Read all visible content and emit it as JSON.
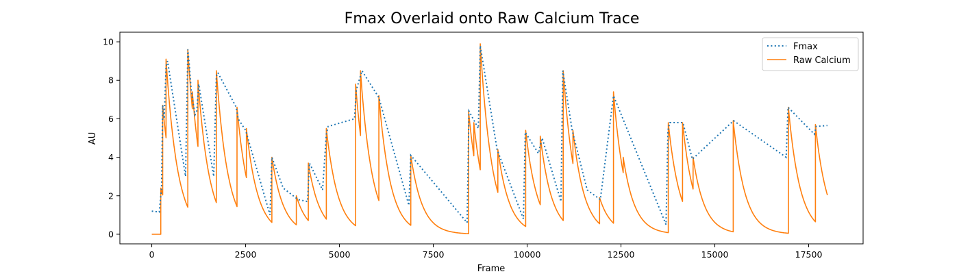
{
  "chart_data": {
    "type": "line",
    "title": "Fmax Overlaid onto Raw Calcium Trace",
    "xlabel": "Frame",
    "ylabel": "AU",
    "xlim": [
      -850,
      18950
    ],
    "ylim": [
      -0.5,
      10.5
    ],
    "x_ticks": [
      0,
      2500,
      5000,
      7500,
      10000,
      12500,
      15000,
      17500
    ],
    "y_ticks": [
      0,
      2,
      4,
      6,
      8,
      10
    ],
    "grid": false,
    "legend_position": "top-right",
    "series": [
      {
        "name": "Fmax",
        "color": "#1f77b4",
        "style": "dotted",
        "points": [
          [
            0,
            1.2
          ],
          [
            200,
            1.15
          ],
          [
            260,
            2.4
          ],
          [
            290,
            6.7
          ],
          [
            330,
            6.0
          ],
          [
            380,
            8.7
          ],
          [
            420,
            9.0
          ],
          [
            900,
            3.0
          ],
          [
            960,
            9.6
          ],
          [
            1000,
            8.8
          ],
          [
            1050,
            7.5
          ],
          [
            1150,
            6.2
          ],
          [
            1200,
            6.4
          ],
          [
            1250,
            7.8
          ],
          [
            1650,
            3.0
          ],
          [
            1720,
            8.2
          ],
          [
            1760,
            8.4
          ],
          [
            2250,
            6.6
          ],
          [
            2300,
            6.0
          ],
          [
            2500,
            5.4
          ],
          [
            3150,
            1.0
          ],
          [
            3200,
            4.0
          ],
          [
            3500,
            2.4
          ],
          [
            3900,
            1.8
          ],
          [
            4150,
            1.7
          ],
          [
            4200,
            3.7
          ],
          [
            4550,
            2.3
          ],
          [
            4650,
            5.2
          ],
          [
            4700,
            5.6
          ],
          [
            5400,
            6.0
          ],
          [
            5450,
            7.5
          ],
          [
            5600,
            8.5
          ],
          [
            6050,
            7.1
          ],
          [
            6850,
            1.5
          ],
          [
            6900,
            4.1
          ],
          [
            8400,
            0.6
          ],
          [
            8450,
            6.4
          ],
          [
            8700,
            5.5
          ],
          [
            8750,
            9.8
          ],
          [
            9200,
            4.4
          ],
          [
            9900,
            0.8
          ],
          [
            9950,
            5.3
          ],
          [
            10300,
            4.2
          ],
          [
            10400,
            5.0
          ],
          [
            10900,
            1.7
          ],
          [
            10950,
            8.5
          ],
          [
            11200,
            5.4
          ],
          [
            11600,
            2.3
          ],
          [
            11950,
            1.8
          ],
          [
            12300,
            7.2
          ],
          [
            13700,
            0.5
          ],
          [
            13750,
            5.4
          ],
          [
            13800,
            5.8
          ],
          [
            14150,
            5.8
          ],
          [
            14400,
            3.9
          ],
          [
            15500,
            5.9
          ],
          [
            16900,
            4.0
          ],
          [
            16950,
            6.6
          ],
          [
            17650,
            5.2
          ],
          [
            17700,
            5.6
          ],
          [
            18000,
            5.65
          ]
        ]
      },
      {
        "name": "Raw Calcium",
        "color": "#ff7f0e",
        "style": "solid"
      }
    ],
    "raw_events": [
      {
        "frame": 0,
        "level": 0.0
      },
      {
        "frame": 200,
        "level": 0.0
      },
      {
        "frame": 240,
        "level": 2.4
      },
      {
        "frame": 290,
        "level": 6.7
      },
      {
        "frame": 380,
        "level": 9.1
      },
      {
        "frame": 960,
        "level": 9.6
      },
      {
        "frame": 1080,
        "level": 7.4
      },
      {
        "frame": 1230,
        "level": 8.0
      },
      {
        "frame": 1720,
        "level": 8.5
      },
      {
        "frame": 2270,
        "level": 6.6
      },
      {
        "frame": 2520,
        "level": 5.5
      },
      {
        "frame": 3200,
        "level": 4.0
      },
      {
        "frame": 3850,
        "level": 2.0
      },
      {
        "frame": 4170,
        "level": 3.7
      },
      {
        "frame": 4650,
        "level": 5.5
      },
      {
        "frame": 5430,
        "level": 7.8
      },
      {
        "frame": 5560,
        "level": 8.5
      },
      {
        "frame": 6050,
        "level": 7.2
      },
      {
        "frame": 6900,
        "level": 4.1
      },
      {
        "frame": 8440,
        "level": 6.4
      },
      {
        "frame": 8580,
        "level": 5.8
      },
      {
        "frame": 8750,
        "level": 9.9
      },
      {
        "frame": 9220,
        "level": 4.4
      },
      {
        "frame": 9960,
        "level": 5.4
      },
      {
        "frame": 10350,
        "level": 5.1
      },
      {
        "frame": 10960,
        "level": 8.5
      },
      {
        "frame": 11220,
        "level": 5.4
      },
      {
        "frame": 11930,
        "level": 1.9
      },
      {
        "frame": 12300,
        "level": 7.4
      },
      {
        "frame": 12560,
        "level": 4.0
      },
      {
        "frame": 13760,
        "level": 5.8
      },
      {
        "frame": 14140,
        "level": 5.8
      },
      {
        "frame": 14420,
        "level": 4.0
      },
      {
        "frame": 15490,
        "level": 5.9
      },
      {
        "frame": 16960,
        "level": 6.6
      },
      {
        "frame": 17680,
        "level": 5.7
      }
    ],
    "raw_end_frame": 18000,
    "decay_time_constant_frames": 310
  }
}
